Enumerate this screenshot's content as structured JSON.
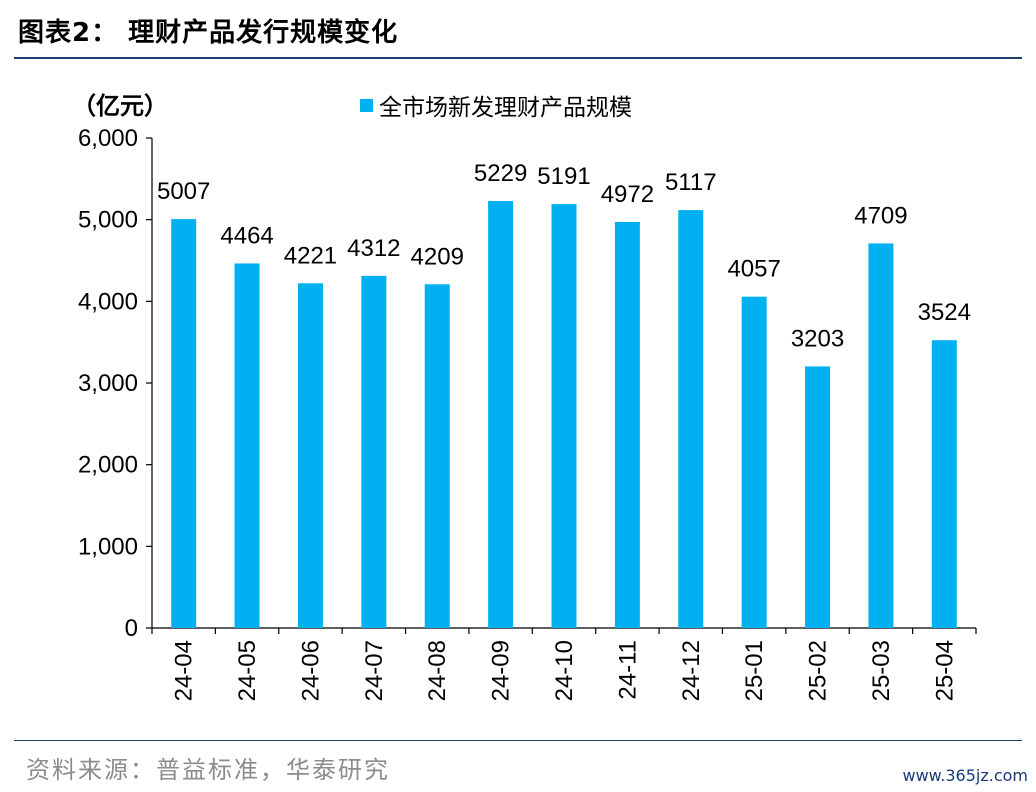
{
  "figure": {
    "title": "图表2：  理财产品发行规模变化",
    "source": "资料来源：普益标准，华泰研究",
    "watermark": "www.365jz.com"
  },
  "colors": {
    "bar": "#00B0F0",
    "rule": "#1F3E6E",
    "source_text": "#8C8C8C",
    "watermark": "#1A3A7A"
  },
  "chart_data": {
    "type": "bar",
    "unit_label": "（亿元）",
    "categories": [
      "24-04",
      "24-05",
      "24-06",
      "24-07",
      "24-08",
      "24-09",
      "24-10",
      "24-11",
      "24-12",
      "25-01",
      "25-02",
      "25-03",
      "25-04"
    ],
    "series": [
      {
        "name": "全市场新发理财产品规模",
        "values": [
          5007,
          4464,
          4221,
          4312,
          4209,
          5229,
          5191,
          4972,
          5117,
          4057,
          3203,
          4709,
          3524
        ]
      }
    ],
    "ylim": [
      0,
      6000
    ],
    "yticks": [
      0,
      1000,
      2000,
      3000,
      4000,
      5000,
      6000
    ],
    "ytick_labels": [
      "0",
      "1,000",
      "2,000",
      "3,000",
      "4,000",
      "5,000",
      "6,000"
    ],
    "data_labels": true,
    "xlabel_rotation": "vertical",
    "legend_position": "top-center",
    "grid": false
  }
}
